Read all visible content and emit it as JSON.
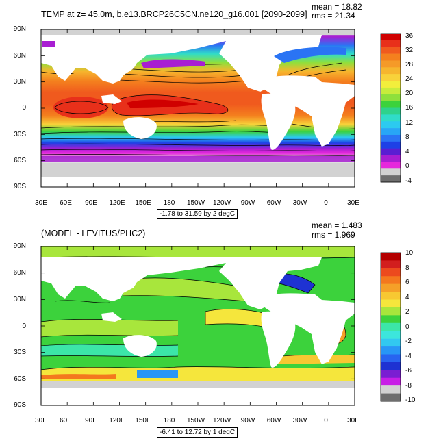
{
  "panels": [
    {
      "title": "TEMP at z=  45.0m, b.e13.BRCP26C5CN.ne120_g16.001 [2090-2099]",
      "stats": {
        "mean": "mean = 18.82",
        "rms": "rms = 21.34"
      },
      "note": "-1.78 to 31.59 by 2 degC",
      "lat_labels": [
        "90N",
        "60N",
        "30N",
        "0",
        "30S",
        "60S",
        "90S"
      ],
      "lon_labels": [
        "30E",
        "60E",
        "90E",
        "120E",
        "150E",
        "180",
        "150W",
        "120W",
        "90W",
        "60W",
        "30W",
        "0",
        "30E"
      ],
      "colorbar": {
        "labels": [
          "36",
          "32",
          "28",
          "24",
          "20",
          "16",
          "12",
          "8",
          "4",
          "0",
          "-4"
        ],
        "colors": [
          "#d00000",
          "#e8301a",
          "#f05a1e",
          "#f4801e",
          "#f59a28",
          "#f6b62e",
          "#f8d23a",
          "#f2ee3c",
          "#c8ec3c",
          "#8ee03c",
          "#3cd23c",
          "#2ed28c",
          "#30dcc8",
          "#2ccaf0",
          "#28a6f6",
          "#2a74f4",
          "#1e40e6",
          "#5a1ed2",
          "#a81ed2",
          "#e628dc",
          "#d2d2d2",
          "#6e6e6e"
        ]
      }
    },
    {
      "title": "(MODEL - LEVITUS/PHC2)",
      "stats": {
        "mean": "mean = 1.483",
        "rms": "rms = 1.969"
      },
      "note": "-6.41 to 12.72 by 1 degC",
      "lat_labels": [
        "90N",
        "60N",
        "30N",
        "0",
        "30S",
        "60S",
        "90S"
      ],
      "lon_labels": [
        "30E",
        "60E",
        "90E",
        "120E",
        "150E",
        "180",
        "150W",
        "120W",
        "90W",
        "60W",
        "30W",
        "0",
        "30E"
      ],
      "colorbar": {
        "labels": [
          "10",
          "8",
          "6",
          "4",
          "2",
          "0",
          "-2",
          "-4",
          "-6",
          "-8",
          "-10"
        ],
        "colors": [
          "#b40000",
          "#d21e1e",
          "#ec4a1e",
          "#f4781e",
          "#f5a028",
          "#f7c832",
          "#f5e63c",
          "#a8e63c",
          "#3cd23c",
          "#3ce6a8",
          "#3ce6dc",
          "#32c8f0",
          "#2896f6",
          "#2864f0",
          "#1e32d2",
          "#7a1ed2",
          "#c81ee6",
          "#d2d2d2",
          "#6e6e6e"
        ]
      }
    }
  ]
}
